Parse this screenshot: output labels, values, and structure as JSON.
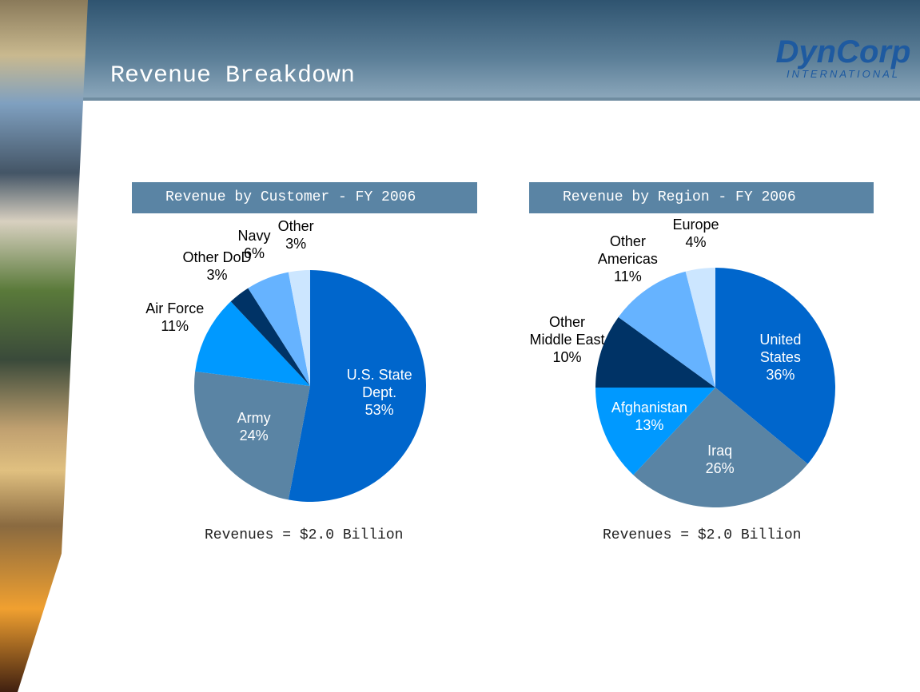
{
  "title": "Revenue Breakdown",
  "logo": {
    "name": "DynCorp",
    "subtitle": "INTERNATIONAL"
  },
  "chart_data": [
    {
      "type": "pie",
      "title": "Revenue by Customer - FY 2006",
      "categories": [
        "U.S. State Dept.",
        "Army",
        "Air Force",
        "Other DoD",
        "Navy",
        "Other"
      ],
      "values": [
        53,
        24,
        11,
        3,
        6,
        3
      ],
      "value_labels": [
        "53%",
        "24%",
        "11%",
        "3%",
        "6%",
        "3%"
      ],
      "colors": [
        "#0066cc",
        "#5a84a4",
        "#0099ff",
        "#003366",
        "#66b3ff",
        "#cce6ff"
      ],
      "footnote": "Revenues = $2.0 Billion"
    },
    {
      "type": "pie",
      "title": "Revenue by Region - FY 2006",
      "categories": [
        "United States",
        "Iraq",
        "Afghanistan",
        "Other Middle East",
        "Other Americas",
        "Europe"
      ],
      "values": [
        36,
        26,
        13,
        10,
        11,
        4
      ],
      "value_labels": [
        "36%",
        "26%",
        "13%",
        "10%",
        "11%",
        "4%"
      ],
      "colors": [
        "#0066cc",
        "#5a84a4",
        "#0099ff",
        "#003366",
        "#66b3ff",
        "#cce6ff"
      ],
      "footnote": "Revenues = $2.0 Billion"
    }
  ]
}
